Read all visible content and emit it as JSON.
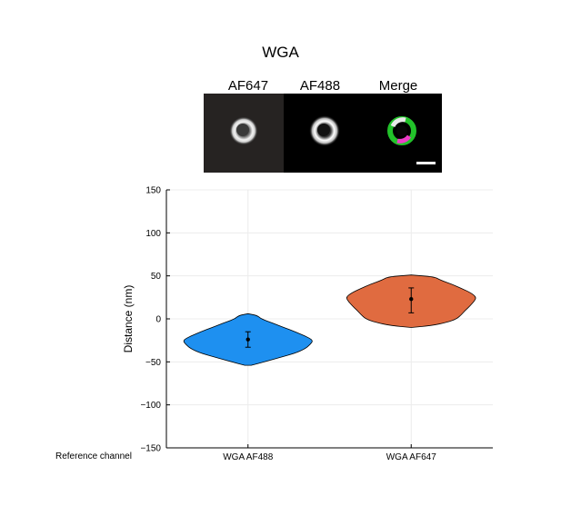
{
  "figure": {
    "title": "WGA",
    "panel_labels": [
      "AF647",
      "AF488",
      "Merge"
    ],
    "panel_icons": [
      "grayscale-ring-image",
      "grayscale-ring-image",
      "merged-magenta-green-ring-image"
    ],
    "reference_label": "Reference channel"
  },
  "chart_data": {
    "type": "violin",
    "title": "",
    "xlabel": "",
    "ylabel": "Distance (nm)",
    "ylim": [
      -150,
      150
    ],
    "yticks": [
      150,
      100,
      50,
      0,
      -50,
      -100,
      -150
    ],
    "ytick_labels": [
      "150",
      "100",
      "50",
      "0",
      "−50",
      "−100",
      "−150"
    ],
    "grid": true,
    "categories": [
      "WGA AF488",
      "WGA AF647"
    ],
    "series": [
      {
        "category": "WGA AF488",
        "color": "#1e90f0",
        "min": -54,
        "max": 6,
        "mean": -24,
        "err_low": -33,
        "err_high": -15,
        "profile": [
          [
            -54,
            0.05
          ],
          [
            -50,
            0.25
          ],
          [
            -45,
            0.48
          ],
          [
            -40,
            0.72
          ],
          [
            -35,
            0.87
          ],
          [
            -30,
            0.95
          ],
          [
            -25,
            1.0
          ],
          [
            -20,
            0.88
          ],
          [
            -15,
            0.72
          ],
          [
            -10,
            0.55
          ],
          [
            -5,
            0.38
          ],
          [
            0,
            0.2
          ],
          [
            4,
            0.14
          ],
          [
            6,
            0.0
          ]
        ],
        "width_scale": 0.8
      },
      {
        "category": "WGA AF647",
        "color": "#e06b40",
        "min": -10,
        "max": 51,
        "mean": 23,
        "err_low": 7,
        "err_high": 36,
        "profile": [
          [
            -10,
            0.0
          ],
          [
            -8,
            0.3
          ],
          [
            -4,
            0.55
          ],
          [
            0,
            0.7
          ],
          [
            5,
            0.77
          ],
          [
            10,
            0.83
          ],
          [
            15,
            0.9
          ],
          [
            20,
            0.96
          ],
          [
            25,
            1.0
          ],
          [
            30,
            0.92
          ],
          [
            35,
            0.78
          ],
          [
            40,
            0.63
          ],
          [
            45,
            0.45
          ],
          [
            49,
            0.35
          ],
          [
            51,
            0.0
          ]
        ],
        "width_scale": 0.8
      }
    ]
  }
}
